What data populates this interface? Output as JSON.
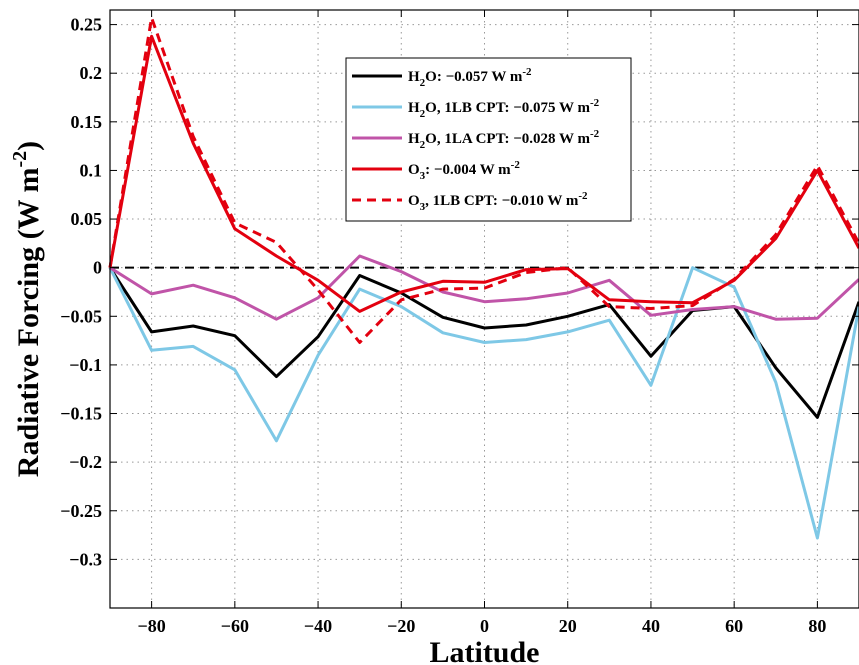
{
  "chart_data": {
    "type": "line",
    "xlabel": "Latitude",
    "ylabel": "Radiative Forcing (W m",
    "ylabel_sup": "-2",
    "ylabel_end": ")",
    "xlim": [
      -90,
      90
    ],
    "ylim": [
      -0.35,
      0.265
    ],
    "grid": true,
    "legend_position": "top-center",
    "zero_line_color": "#000000",
    "x_ticks": [
      -80,
      -60,
      -40,
      -20,
      0,
      20,
      40,
      60,
      80
    ],
    "x_tick_labels": [
      "−80",
      "−60",
      "−40",
      "−20",
      "0",
      "20",
      "40",
      "60",
      "80"
    ],
    "y_ticks": [
      0.25,
      0.2,
      0.15,
      0.1,
      0.05,
      0,
      -0.05,
      -0.1,
      -0.15,
      -0.2,
      -0.25,
      -0.3
    ],
    "y_tick_labels": [
      "0.25",
      "0.2",
      "0.15",
      "0.1",
      "0.05",
      "0",
      "−0.05",
      "−0.1",
      "−0.15",
      "−0.2",
      "−0.25",
      "−0.3"
    ],
    "x": [
      -90,
      -80,
      -70,
      -60,
      -50,
      -40,
      -30,
      -20,
      -10,
      0,
      10,
      20,
      30,
      40,
      50,
      60,
      70,
      80,
      90
    ],
    "series": [
      {
        "legend": [
          {
            "t": "H"
          },
          {
            "t": "2",
            "sub": true
          },
          {
            "t": "O: −0.057 W m"
          },
          {
            "t": "-2",
            "sup": true
          }
        ],
        "color": "#000000",
        "dash": "solid",
        "values": [
          0,
          -0.066,
          -0.06,
          -0.07,
          -0.112,
          -0.071,
          -0.008,
          -0.026,
          -0.051,
          -0.062,
          -0.059,
          -0.05,
          -0.038,
          -0.091,
          -0.044,
          -0.04,
          -0.103,
          -0.154,
          -0.035
        ]
      },
      {
        "legend": [
          {
            "t": "H"
          },
          {
            "t": "2",
            "sub": true
          },
          {
            "t": "O, 1LB CPT: −0.075 W m"
          },
          {
            "t": "-2",
            "sup": true
          }
        ],
        "color": "#7ec8e6",
        "dash": "solid",
        "values": [
          0,
          -0.085,
          -0.081,
          -0.105,
          -0.178,
          -0.09,
          -0.022,
          -0.04,
          -0.067,
          -0.077,
          -0.074,
          -0.066,
          -0.054,
          -0.121,
          0.0,
          -0.02,
          -0.118,
          -0.278,
          -0.04
        ]
      },
      {
        "legend": [
          {
            "t": "H"
          },
          {
            "t": "2",
            "sub": true
          },
          {
            "t": "O, 1LA CPT: −0.028 W m"
          },
          {
            "t": "-2",
            "sup": true
          }
        ],
        "color": "#c054a8",
        "dash": "solid",
        "values": [
          0,
          -0.027,
          -0.018,
          -0.031,
          -0.053,
          -0.031,
          0.012,
          -0.004,
          -0.025,
          -0.035,
          -0.032,
          -0.026,
          -0.013,
          -0.049,
          -0.043,
          -0.04,
          -0.053,
          -0.052,
          -0.012
        ]
      },
      {
        "legend": [
          {
            "t": "O"
          },
          {
            "t": "3",
            "sub": true
          },
          {
            "t": ": −0.004 W m"
          },
          {
            "t": "-2",
            "sup": true
          }
        ],
        "color": "#e3000f",
        "dash": "solid",
        "values": [
          0,
          0.238,
          0.128,
          0.04,
          0.012,
          -0.013,
          -0.045,
          -0.025,
          -0.014,
          -0.015,
          -0.002,
          -0.001,
          -0.033,
          -0.035,
          -0.036,
          -0.013,
          0.03,
          0.1,
          0.02
        ]
      },
      {
        "legend": [
          {
            "t": "O"
          },
          {
            "t": "3",
            "sub": true
          },
          {
            "t": ", 1LB CPT: −0.010 W m"
          },
          {
            "t": "-2",
            "sup": true
          }
        ],
        "color": "#e3000f",
        "dash": "dashed",
        "values": [
          0,
          0.257,
          0.135,
          0.046,
          0.026,
          -0.023,
          -0.077,
          -0.033,
          -0.022,
          -0.021,
          -0.005,
          0.0,
          -0.04,
          -0.042,
          -0.039,
          -0.012,
          0.034,
          0.105,
          0.025
        ]
      }
    ]
  }
}
